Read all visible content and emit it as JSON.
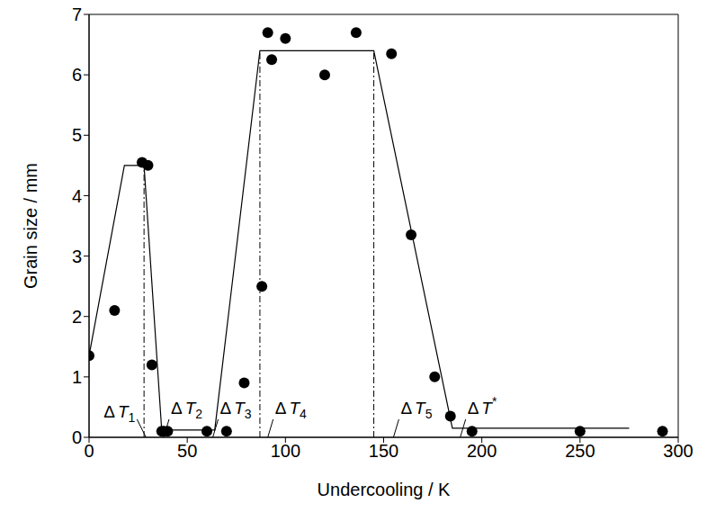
{
  "chart_data": {
    "type": "scatter",
    "x_label": "Undercooling / K",
    "y_label": "Grain size / mm",
    "xlim": [
      0,
      300
    ],
    "xticks": [
      0,
      50,
      100,
      150,
      200,
      250,
      300
    ],
    "ylim": [
      0,
      7
    ],
    "yticks": [
      0,
      1,
      2,
      3,
      4,
      5,
      6,
      7
    ],
    "color": "#000000",
    "marker": "circle",
    "x": [
      0,
      13,
      27,
      30,
      32,
      37,
      38,
      40,
      60,
      70,
      79,
      88,
      91,
      93,
      100,
      120,
      136,
      154,
      164,
      176,
      184,
      195,
      250,
      292
    ],
    "values": [
      1.35,
      2.1,
      4.55,
      4.5,
      1.2,
      0.1,
      0.1,
      0.1,
      0.1,
      0.1,
      0.9,
      2.5,
      6.7,
      6.25,
      6.6,
      6.0,
      6.7,
      6.35,
      3.35,
      1.0,
      0.35,
      0.1,
      0.1,
      0.1
    ],
    "fit": {
      "x": [
        0,
        18,
        28,
        37,
        64,
        87,
        145,
        185,
        275
      ],
      "values": [
        1.35,
        4.5,
        4.5,
        0.12,
        0.12,
        6.4,
        6.4,
        0.15,
        0.15
      ],
      "line_style": "solid"
    },
    "guides": {
      "x": [
        28,
        87,
        145
      ],
      "values": [
        4.5,
        6.4,
        6.4
      ],
      "line_style": "dashdot"
    },
    "annotations": [
      {
        "text": "ΔT1",
        "x": 29
      },
      {
        "text": "ΔT2",
        "x": 38
      },
      {
        "text": "ΔT3",
        "x": 63
      },
      {
        "text": "ΔT4",
        "x": 91
      },
      {
        "text": "ΔT5",
        "x": 155
      },
      {
        "text": "ΔT*",
        "x": 189
      }
    ]
  }
}
